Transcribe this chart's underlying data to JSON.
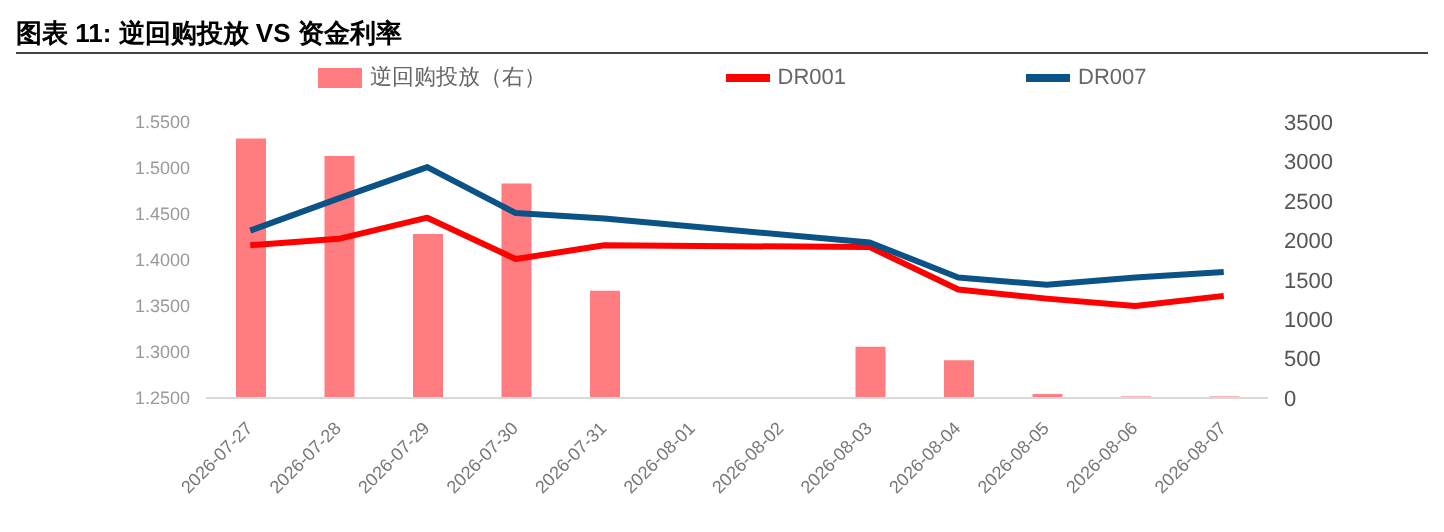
{
  "chart_data": {
    "type": "bar",
    "title": "图表 11: 逆回购投放 VS 资金利率",
    "categories": [
      "2026-07-27",
      "2026-07-28",
      "2026-07-29",
      "2026-07-30",
      "2026-07-31",
      "2026-08-01",
      "2026-08-02",
      "2026-08-03",
      "2026-08-04",
      "2026-08-05",
      "2026-08-06",
      "2026-08-07"
    ],
    "series": [
      {
        "name": "逆回购投放（右）",
        "axis": "y2",
        "color": "#ff7c80",
        "values": [
          3290,
          3070,
          2080,
          2720,
          1360,
          null,
          null,
          650,
          480,
          50,
          20,
          20
        ]
      },
      {
        "name": "DR001",
        "type": "line",
        "color": "#ff0000",
        "values": [
          1.416,
          1.423,
          1.446,
          1.401,
          1.416,
          null,
          null,
          1.414,
          1.368,
          1.358,
          1.35,
          1.361
        ]
      },
      {
        "name": "DR007",
        "type": "line",
        "color": "#0b5286",
        "values": [
          1.432,
          1.467,
          1.501,
          1.451,
          1.445,
          null,
          null,
          1.419,
          1.381,
          1.373,
          1.381,
          1.387
        ]
      }
    ],
    "ylim": [
      1.25,
      1.55
    ],
    "yticks": [
      {
        "value": 1.25,
        "label": "1.2500"
      },
      {
        "value": 1.3,
        "label": "1.3000"
      },
      {
        "value": 1.35,
        "label": "1.3500"
      },
      {
        "value": 1.4,
        "label": "1.4000"
      },
      {
        "value": 1.45,
        "label": "1.4500"
      },
      {
        "value": 1.5,
        "label": "1.5000"
      },
      {
        "value": 1.55,
        "label": "1.5500"
      }
    ],
    "y2lim": [
      0,
      3500
    ],
    "y2ticks": [
      0,
      500,
      1000,
      1500,
      2000,
      2500,
      3000,
      3500
    ],
    "grid": false,
    "legend": "top"
  }
}
